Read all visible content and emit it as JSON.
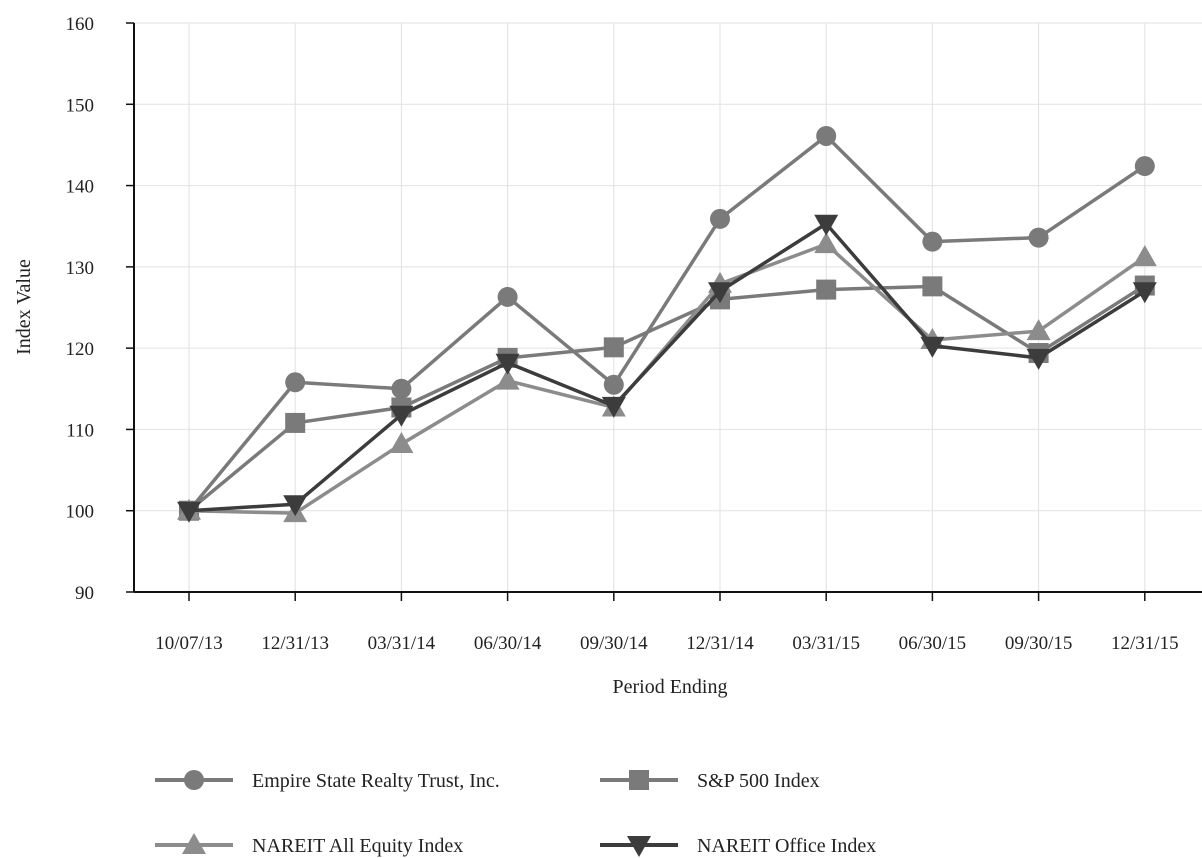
{
  "chart_data": {
    "type": "line",
    "xlabel": "Period Ending",
    "ylabel": "Index Value",
    "categories": [
      "10/07/13",
      "12/31/13",
      "03/31/14",
      "06/30/14",
      "09/30/14",
      "12/31/14",
      "03/31/15",
      "06/30/15",
      "09/30/15",
      "12/31/15"
    ],
    "ylim": [
      90,
      160
    ],
    "yticks": [
      90,
      100,
      110,
      120,
      130,
      140,
      150,
      160
    ],
    "grid": true,
    "legend_position": "bottom",
    "series": [
      {
        "name": "Empire State Realty Trust, Inc.",
        "marker": "circle",
        "color": "#7a7a7a",
        "values": [
          100,
          115.8,
          115.0,
          126.3,
          115.5,
          135.9,
          146.1,
          133.1,
          133.6,
          142.4
        ]
      },
      {
        "name": "S&P 500 Index",
        "marker": "square",
        "color": "#7a7a7a",
        "values": [
          100,
          110.8,
          112.7,
          118.8,
          120.1,
          126.0,
          127.2,
          127.6,
          119.4,
          127.7
        ]
      },
      {
        "name": "NAREIT All Equity Index",
        "marker": "triangle-up",
        "color": "#8c8c8c",
        "values": [
          100,
          99.7,
          108.2,
          116.0,
          112.7,
          127.9,
          132.8,
          121.0,
          122.1,
          131.2
        ]
      },
      {
        "name": "NAREIT Office Index",
        "marker": "triangle-down",
        "color": "#3c3c3c",
        "values": [
          100,
          100.8,
          111.8,
          118.2,
          112.9,
          127.0,
          135.3,
          120.3,
          118.8,
          127.0
        ]
      }
    ]
  }
}
